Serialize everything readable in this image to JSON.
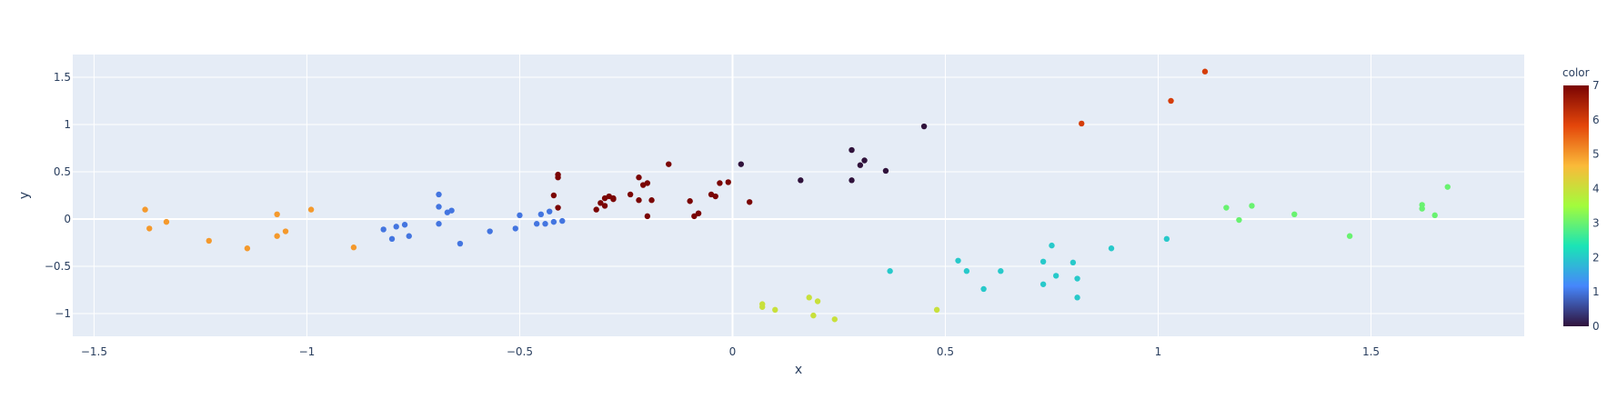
{
  "chart_data": {
    "type": "scatter",
    "xlabel": "x",
    "ylabel": "y",
    "xlim": [
      -1.55,
      1.86
    ],
    "ylim": [
      -1.24,
      1.74
    ],
    "xticks": [
      -1.5,
      -1,
      -0.5,
      0,
      0.5,
      1,
      1.5
    ],
    "xtick_labels": [
      "−1.5",
      "−1",
      "−0.5",
      "0",
      "0.5",
      "1",
      "1.5"
    ],
    "yticks": [
      -1,
      -0.5,
      0,
      0.5,
      1,
      1.5
    ],
    "ytick_labels": [
      "−1",
      "−0.5",
      "0",
      "0.5",
      "1",
      "1.5"
    ],
    "grid": true,
    "colorbar": {
      "title": "color",
      "range": [
        0,
        7
      ],
      "ticks": [
        0,
        1,
        2,
        3,
        4,
        5,
        6,
        7
      ],
      "tick_labels": [
        "0",
        "1",
        "2",
        "3",
        "4",
        "5",
        "6",
        "7"
      ],
      "colorscale": [
        "#30123b",
        "#4686fb",
        "#1ae4b6",
        "#a2fc3c",
        "#faba39",
        "#e4460a",
        "#7a0403"
      ]
    },
    "colors": {
      "plot_bg": "#e5ecf6",
      "grid": "#ffffff",
      "text": "#2a3f5f"
    },
    "points": [
      {
        "x": -1.38,
        "y": 0.1,
        "c": 5
      },
      {
        "x": -1.37,
        "y": -0.1,
        "c": 5
      },
      {
        "x": -1.33,
        "y": -0.03,
        "c": 5
      },
      {
        "x": -1.23,
        "y": -0.23,
        "c": 5
      },
      {
        "x": -1.14,
        "y": -0.31,
        "c": 5
      },
      {
        "x": -1.07,
        "y": 0.05,
        "c": 5
      },
      {
        "x": -1.07,
        "y": -0.18,
        "c": 5
      },
      {
        "x": -1.05,
        "y": -0.13,
        "c": 5
      },
      {
        "x": -0.99,
        "y": 0.1,
        "c": 5
      },
      {
        "x": -0.89,
        "y": -0.3,
        "c": 5
      },
      {
        "x": -0.82,
        "y": -0.11,
        "c": 1
      },
      {
        "x": -0.8,
        "y": -0.21,
        "c": 1
      },
      {
        "x": -0.79,
        "y": -0.08,
        "c": 1
      },
      {
        "x": -0.77,
        "y": -0.06,
        "c": 1
      },
      {
        "x": -0.76,
        "y": -0.18,
        "c": 1
      },
      {
        "x": -0.69,
        "y": 0.26,
        "c": 1
      },
      {
        "x": -0.69,
        "y": 0.13,
        "c": 1
      },
      {
        "x": -0.69,
        "y": -0.05,
        "c": 1
      },
      {
        "x": -0.67,
        "y": 0.07,
        "c": 1
      },
      {
        "x": -0.66,
        "y": 0.09,
        "c": 1
      },
      {
        "x": -0.64,
        "y": -0.26,
        "c": 1
      },
      {
        "x": -0.57,
        "y": -0.13,
        "c": 1
      },
      {
        "x": -0.51,
        "y": -0.1,
        "c": 1
      },
      {
        "x": -0.5,
        "y": 0.04,
        "c": 1
      },
      {
        "x": -0.46,
        "y": -0.05,
        "c": 1
      },
      {
        "x": -0.45,
        "y": 0.05,
        "c": 1
      },
      {
        "x": -0.44,
        "y": -0.05,
        "c": 1
      },
      {
        "x": -0.43,
        "y": 0.08,
        "c": 1
      },
      {
        "x": -0.42,
        "y": -0.03,
        "c": 1
      },
      {
        "x": -0.4,
        "y": -0.02,
        "c": 1
      },
      {
        "x": -0.42,
        "y": 0.25,
        "c": 7
      },
      {
        "x": -0.41,
        "y": 0.47,
        "c": 7
      },
      {
        "x": -0.41,
        "y": 0.44,
        "c": 7
      },
      {
        "x": -0.41,
        "y": 0.12,
        "c": 7
      },
      {
        "x": -0.32,
        "y": 0.1,
        "c": 7
      },
      {
        "x": -0.31,
        "y": 0.17,
        "c": 7
      },
      {
        "x": -0.3,
        "y": 0.14,
        "c": 7
      },
      {
        "x": -0.3,
        "y": 0.22,
        "c": 7
      },
      {
        "x": -0.29,
        "y": 0.24,
        "c": 7
      },
      {
        "x": -0.28,
        "y": 0.21,
        "c": 7
      },
      {
        "x": -0.28,
        "y": 0.22,
        "c": 7
      },
      {
        "x": -0.24,
        "y": 0.26,
        "c": 7
      },
      {
        "x": -0.22,
        "y": 0.44,
        "c": 7
      },
      {
        "x": -0.22,
        "y": 0.2,
        "c": 7
      },
      {
        "x": -0.21,
        "y": 0.36,
        "c": 7
      },
      {
        "x": -0.2,
        "y": 0.38,
        "c": 7
      },
      {
        "x": -0.2,
        "y": 0.03,
        "c": 7
      },
      {
        "x": -0.19,
        "y": 0.2,
        "c": 7
      },
      {
        "x": -0.15,
        "y": 0.58,
        "c": 7
      },
      {
        "x": -0.1,
        "y": 0.19,
        "c": 7
      },
      {
        "x": -0.09,
        "y": 0.03,
        "c": 7
      },
      {
        "x": -0.08,
        "y": 0.06,
        "c": 7
      },
      {
        "x": -0.08,
        "y": 0.06,
        "c": 7
      },
      {
        "x": -0.05,
        "y": 0.26,
        "c": 7
      },
      {
        "x": -0.04,
        "y": 0.24,
        "c": 7
      },
      {
        "x": -0.03,
        "y": 0.38,
        "c": 7
      },
      {
        "x": -0.01,
        "y": 0.39,
        "c": 7
      },
      {
        "x": 0.04,
        "y": 0.18,
        "c": 7
      },
      {
        "x": 0.02,
        "y": 0.58,
        "c": 0
      },
      {
        "x": 0.16,
        "y": 0.41,
        "c": 0
      },
      {
        "x": 0.28,
        "y": 0.73,
        "c": 0
      },
      {
        "x": 0.28,
        "y": 0.41,
        "c": 0
      },
      {
        "x": 0.3,
        "y": 0.57,
        "c": 0
      },
      {
        "x": 0.31,
        "y": 0.62,
        "c": 0
      },
      {
        "x": 0.36,
        "y": 0.51,
        "c": 0
      },
      {
        "x": 0.45,
        "y": 0.98,
        "c": 0
      },
      {
        "x": 0.07,
        "y": -0.9,
        "c": 4
      },
      {
        "x": 0.07,
        "y": -0.93,
        "c": 4
      },
      {
        "x": 0.1,
        "y": -0.96,
        "c": 4
      },
      {
        "x": 0.18,
        "y": -0.83,
        "c": 4
      },
      {
        "x": 0.19,
        "y": -1.02,
        "c": 4
      },
      {
        "x": 0.2,
        "y": -0.87,
        "c": 4
      },
      {
        "x": 0.24,
        "y": -1.06,
        "c": 4
      },
      {
        "x": 0.48,
        "y": -0.96,
        "c": 4
      },
      {
        "x": 0.37,
        "y": -0.55,
        "c": 2
      },
      {
        "x": 0.53,
        "y": -0.44,
        "c": 2
      },
      {
        "x": 0.55,
        "y": -0.55,
        "c": 2
      },
      {
        "x": 0.59,
        "y": -0.74,
        "c": 2
      },
      {
        "x": 0.63,
        "y": -0.55,
        "c": 2
      },
      {
        "x": 0.73,
        "y": -0.45,
        "c": 2
      },
      {
        "x": 0.73,
        "y": -0.69,
        "c": 2
      },
      {
        "x": 0.75,
        "y": -0.28,
        "c": 2
      },
      {
        "x": 0.76,
        "y": -0.6,
        "c": 2
      },
      {
        "x": 0.8,
        "y": -0.46,
        "c": 2
      },
      {
        "x": 0.81,
        "y": -0.83,
        "c": 2
      },
      {
        "x": 0.81,
        "y": -0.63,
        "c": 2
      },
      {
        "x": 0.89,
        "y": -0.31,
        "c": 2
      },
      {
        "x": 1.02,
        "y": -0.21,
        "c": 2
      },
      {
        "x": 0.82,
        "y": 1.01,
        "c": 6
      },
      {
        "x": 1.03,
        "y": 1.25,
        "c": 6
      },
      {
        "x": 1.11,
        "y": 1.56,
        "c": 6
      },
      {
        "x": 1.16,
        "y": 0.12,
        "c": 3
      },
      {
        "x": 1.19,
        "y": -0.01,
        "c": 3
      },
      {
        "x": 1.22,
        "y": 0.14,
        "c": 3
      },
      {
        "x": 1.32,
        "y": 0.05,
        "c": 3
      },
      {
        "x": 1.45,
        "y": -0.18,
        "c": 3
      },
      {
        "x": 1.62,
        "y": 0.15,
        "c": 3
      },
      {
        "x": 1.62,
        "y": 0.11,
        "c": 3
      },
      {
        "x": 1.65,
        "y": 0.04,
        "c": 3
      },
      {
        "x": 1.68,
        "y": 0.34,
        "c": 3
      }
    ]
  }
}
